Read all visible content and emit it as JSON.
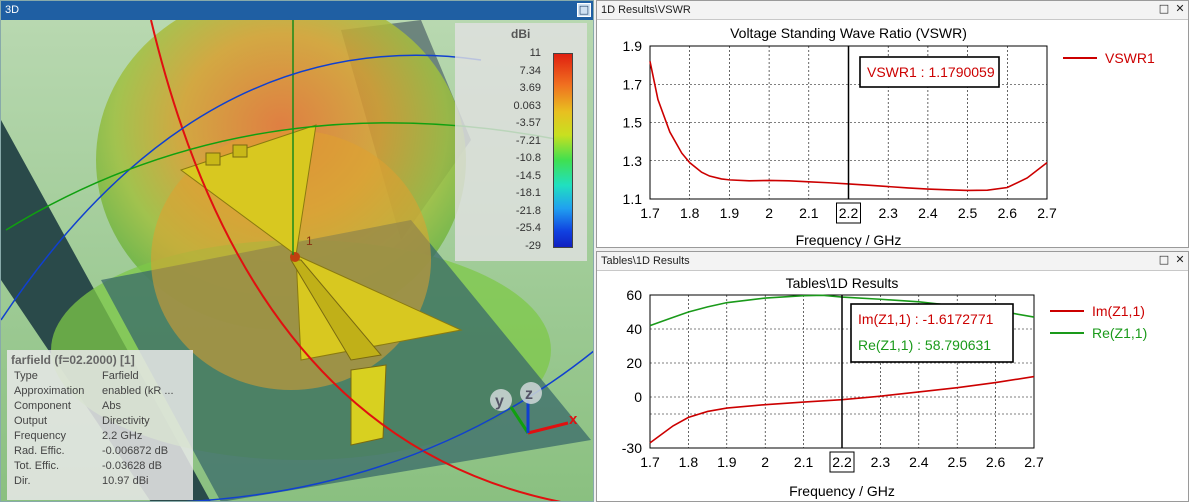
{
  "left_panel": {
    "title": "3D",
    "colorbar": {
      "unit": "dBi",
      "ticks": [
        "11",
        "7.34",
        "3.69",
        "0.063",
        "-3.57",
        "-7.21",
        "-10.8",
        "-14.5",
        "-18.1",
        "-21.8",
        "-25.4",
        "-29"
      ]
    },
    "port_label": "1",
    "axes": {
      "x": "x",
      "y": "y",
      "z": "z"
    },
    "info": {
      "header": "farfield (f=02.2000) [1]",
      "rows": [
        {
          "k": "Type",
          "v": "Farfield"
        },
        {
          "k": "Approximation",
          "v": "enabled (kR ..."
        },
        {
          "k": "Component",
          "v": "Abs"
        },
        {
          "k": "Output",
          "v": "Directivity"
        },
        {
          "k": "Frequency",
          "v": "2.2 GHz"
        },
        {
          "k": "Rad. Effic.",
          "v": "-0.006872 dB"
        },
        {
          "k": "Tot. Effic.",
          "v": "-0.03628 dB"
        },
        {
          "k": "Dir.",
          "v": "10.97 dBi"
        }
      ]
    }
  },
  "vswr_panel": {
    "title": "1D Results\\VSWR",
    "chart_data": {
      "type": "line",
      "title": "Voltage Standing Wave Ratio (VSWR)",
      "xlabel": "Frequency / GHz",
      "ylabel": "",
      "xlim": [
        1.7,
        2.7
      ],
      "ylim": [
        1.1,
        1.9
      ],
      "xticks": [
        "1.7",
        "1.8",
        "1.9",
        "2",
        "2.1",
        "2.2",
        "2.3",
        "2.4",
        "2.5",
        "2.6",
        "2.7"
      ],
      "yticks": [
        "1.9",
        "1.7",
        "1.5",
        "1.3",
        "1.1"
      ],
      "grid": true,
      "legend_position": "right",
      "marker_x": 2.2,
      "marker_label": "VSWR1 : 1.1790059",
      "series": [
        {
          "name": "VSWR1",
          "color": "#cc0000",
          "x": [
            1.7,
            1.72,
            1.75,
            1.78,
            1.8,
            1.83,
            1.85,
            1.88,
            1.9,
            1.95,
            2.0,
            2.05,
            2.1,
            2.15,
            2.2,
            2.25,
            2.3,
            2.35,
            2.4,
            2.45,
            2.5,
            2.55,
            2.6,
            2.65,
            2.7
          ],
          "y": [
            1.82,
            1.62,
            1.45,
            1.34,
            1.29,
            1.24,
            1.22,
            1.205,
            1.2,
            1.195,
            1.197,
            1.195,
            1.19,
            1.185,
            1.179,
            1.172,
            1.165,
            1.158,
            1.152,
            1.148,
            1.145,
            1.146,
            1.16,
            1.21,
            1.29
          ]
        }
      ]
    }
  },
  "tables_panel": {
    "title": "Tables\\1D Results",
    "chart_data": {
      "type": "line",
      "title": "Tables\\1D Results",
      "xlabel": "Frequency / GHz",
      "ylabel": "",
      "xlim": [
        1.7,
        2.7
      ],
      "ylim": [
        -30,
        60
      ],
      "xticks": [
        "1.7",
        "1.8",
        "1.9",
        "2",
        "2.1",
        "2.2",
        "2.3",
        "2.4",
        "2.5",
        "2.6",
        "2.7"
      ],
      "yticks": [
        "60",
        "40",
        "20",
        "0",
        "-30"
      ],
      "ytick_values": [
        60,
        40,
        20,
        0,
        -30
      ],
      "grid": true,
      "legend_position": "right",
      "marker_x": 2.2,
      "marker_labels": [
        "Im(Z1,1) : -1.6172771",
        "Re(Z1,1) : 58.790631"
      ],
      "series": [
        {
          "name": "Im(Z1,1)",
          "color": "#cc0000",
          "x": [
            1.7,
            1.73,
            1.76,
            1.8,
            1.85,
            1.9,
            2.0,
            2.1,
            2.2,
            2.3,
            2.4,
            2.5,
            2.6,
            2.7
          ],
          "y": [
            -27,
            -22,
            -17,
            -12,
            -8.5,
            -6.5,
            -4.5,
            -3,
            -1.6,
            0.5,
            3,
            5.5,
            8.5,
            12
          ]
        },
        {
          "name": "Re(Z1,1)",
          "color": "#1a9a1a",
          "x": [
            1.7,
            1.75,
            1.8,
            1.85,
            1.9,
            2.0,
            2.1,
            2.15,
            2.2,
            2.3,
            2.4,
            2.5,
            2.6,
            2.7
          ],
          "y": [
            42,
            46,
            50,
            53,
            55.5,
            58.2,
            59.6,
            59.8,
            58.8,
            57.5,
            56,
            53.5,
            51,
            47
          ]
        }
      ]
    }
  },
  "window_buttons": {
    "restore": "□",
    "close": "✕"
  }
}
